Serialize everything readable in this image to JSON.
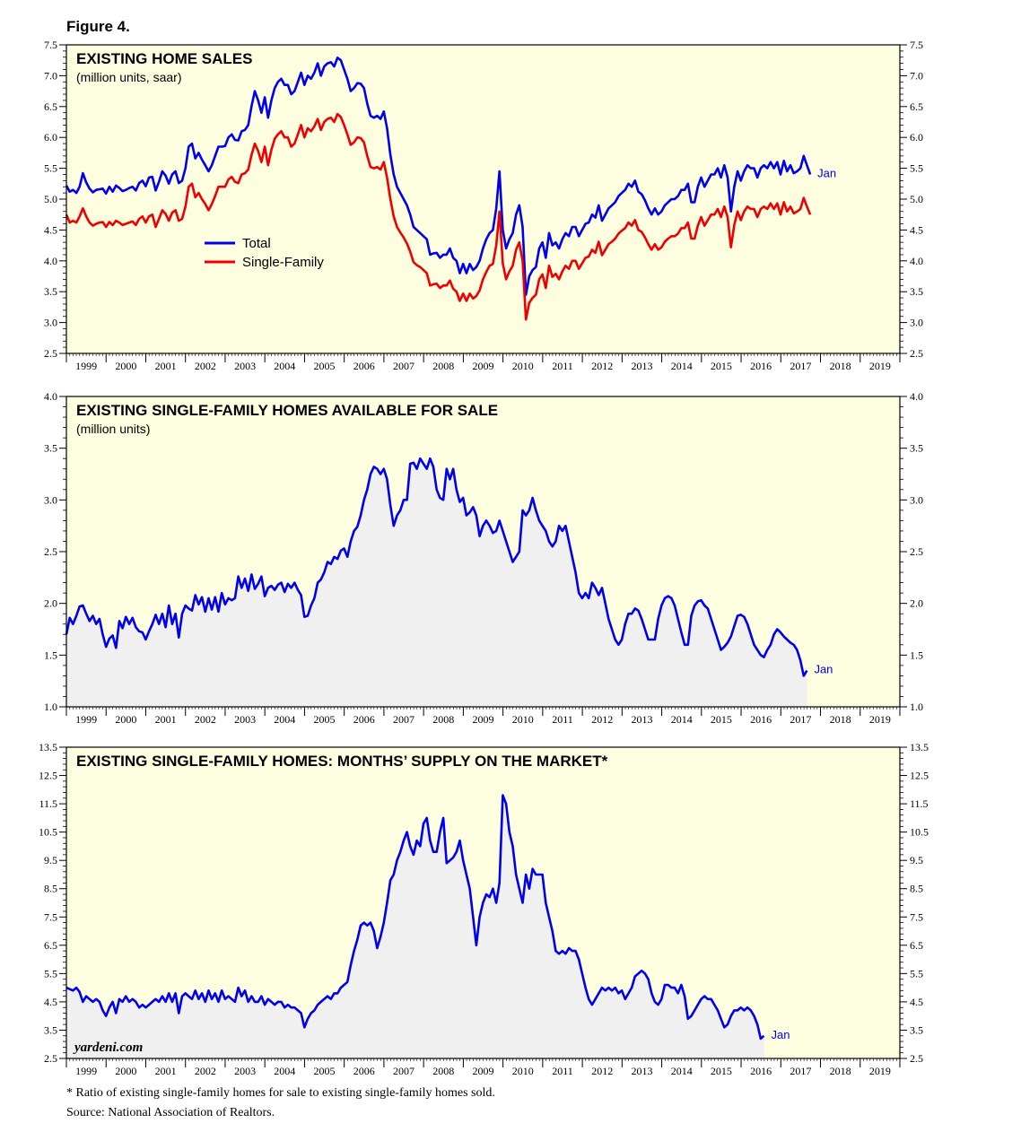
{
  "figure_label": "Figure 4.",
  "footnote": "* Ratio of existing single-family homes for sale to existing single-family homes sold.",
  "source": "Source: National Association of Realtors.",
  "watermark": "yardeni.com",
  "colors": {
    "panel_bg": "#fdfde0",
    "area_fill": "#f0f0f0",
    "total": "#0000ee",
    "single_family": "#ee0000"
  },
  "chart_data": [
    {
      "type": "line",
      "title": "EXISTING HOME SALES",
      "subtitle": "(million units, saar)",
      "x_start": 1999.0,
      "x_step": 0.0833,
      "xlim": [
        1999,
        2020
      ],
      "ylim": [
        2.5,
        7.5
      ],
      "yticks": [
        "2.5",
        "3.0",
        "3.5",
        "4.0",
        "4.5",
        "5.0",
        "5.5",
        "6.0",
        "6.5",
        "7.0",
        "7.5"
      ],
      "xtick_labels": [
        "1999",
        "2000",
        "2001",
        "2002",
        "2003",
        "2004",
        "2005",
        "2006",
        "2007",
        "2008",
        "2009",
        "2010",
        "2011",
        "2012",
        "2013",
        "2014",
        "2015",
        "2016",
        "2017",
        "2018",
        "2019"
      ],
      "end_label": "Jan",
      "legend": {
        "placement": "center-left",
        "entries": [
          "Total",
          "Single-Family"
        ]
      },
      "series": [
        {
          "name": "Total",
          "color": "#0000ee",
          "values": [
            5.22,
            5.12,
            5.15,
            5.1,
            5.2,
            5.42,
            5.27,
            5.17,
            5.11,
            5.15,
            5.16,
            5.17,
            5.09,
            5.2,
            5.12,
            5.22,
            5.18,
            5.13,
            5.15,
            5.18,
            5.2,
            5.14,
            5.26,
            5.3,
            5.21,
            5.35,
            5.36,
            5.14,
            5.28,
            5.45,
            5.38,
            5.25,
            5.4,
            5.45,
            5.26,
            5.3,
            5.5,
            5.85,
            5.9,
            5.66,
            5.75,
            5.64,
            5.55,
            5.45,
            5.55,
            5.7,
            5.85,
            5.85,
            5.86,
            6.0,
            6.05,
            5.96,
            5.95,
            6.1,
            6.12,
            6.2,
            6.51,
            6.75,
            6.6,
            6.4,
            6.65,
            6.32,
            6.6,
            6.8,
            6.9,
            6.95,
            6.85,
            6.85,
            6.7,
            6.75,
            6.9,
            7.05,
            6.85,
            7.0,
            6.95,
            7.05,
            7.2,
            7.0,
            7.15,
            7.2,
            7.22,
            7.15,
            7.29,
            7.25,
            7.1,
            6.95,
            6.75,
            6.8,
            6.88,
            6.87,
            6.8,
            6.55,
            6.35,
            6.32,
            6.35,
            6.3,
            6.42,
            6.15,
            5.72,
            5.4,
            5.2,
            5.1,
            5.0,
            4.9,
            4.75,
            4.55,
            4.5,
            4.45,
            4.4,
            4.35,
            4.1,
            4.12,
            4.13,
            4.05,
            4.1,
            4.1,
            4.2,
            4.05,
            4.0,
            3.8,
            3.95,
            3.8,
            3.95,
            3.85,
            3.9,
            4.0,
            4.2,
            4.35,
            4.45,
            4.5,
            4.85,
            5.45,
            4.5,
            4.2,
            4.35,
            4.45,
            4.75,
            4.9,
            4.55,
            3.45,
            3.75,
            3.85,
            3.9,
            4.2,
            4.3,
            4.05,
            4.45,
            4.25,
            4.3,
            4.2,
            4.35,
            4.45,
            4.4,
            4.55,
            4.55,
            4.4,
            4.5,
            4.6,
            4.62,
            4.75,
            4.7,
            4.9,
            4.65,
            4.75,
            4.85,
            4.9,
            4.95,
            5.05,
            5.1,
            5.15,
            5.25,
            5.2,
            5.3,
            5.12,
            5.08,
            4.98,
            4.85,
            4.75,
            4.85,
            4.75,
            4.8,
            4.9,
            4.95,
            5.0,
            5.0,
            5.05,
            5.15,
            5.15,
            5.25,
            4.95,
            4.95,
            5.2,
            5.35,
            5.2,
            5.3,
            5.4,
            5.4,
            5.5,
            5.35,
            5.55,
            5.35,
            4.8,
            5.2,
            5.45,
            5.3,
            5.45,
            5.55,
            5.5,
            5.5,
            5.35,
            5.5,
            5.55,
            5.5,
            5.6,
            5.5,
            5.6,
            5.4,
            5.62,
            5.45,
            5.55,
            5.42,
            5.45,
            5.5,
            5.7,
            5.55,
            5.4
          ]
        },
        {
          "name": "Single-Family",
          "color": "#ee0000",
          "values": [
            4.75,
            4.62,
            4.65,
            4.62,
            4.72,
            4.85,
            4.72,
            4.62,
            4.57,
            4.6,
            4.62,
            4.63,
            4.55,
            4.63,
            4.58,
            4.65,
            4.62,
            4.58,
            4.6,
            4.62,
            4.64,
            4.58,
            4.68,
            4.72,
            4.62,
            4.72,
            4.75,
            4.55,
            4.68,
            4.82,
            4.76,
            4.65,
            4.78,
            4.82,
            4.65,
            4.68,
            4.88,
            5.2,
            5.25,
            5.03,
            5.1,
            5.0,
            4.92,
            4.82,
            4.92,
            5.05,
            5.2,
            5.2,
            5.2,
            5.32,
            5.36,
            5.28,
            5.26,
            5.4,
            5.42,
            5.48,
            5.72,
            5.9,
            5.78,
            5.6,
            5.85,
            5.55,
            5.8,
            5.98,
            6.05,
            6.1,
            6.0,
            6.0,
            5.85,
            5.9,
            6.05,
            6.2,
            6.0,
            6.15,
            6.1,
            6.18,
            6.3,
            6.12,
            6.25,
            6.3,
            6.32,
            6.25,
            6.38,
            6.33,
            6.2,
            6.05,
            5.88,
            5.92,
            6.0,
            5.99,
            5.92,
            5.7,
            5.52,
            5.5,
            5.52,
            5.48,
            5.6,
            5.35,
            5.0,
            4.72,
            4.55,
            4.46,
            4.38,
            4.28,
            4.15,
            3.98,
            3.93,
            3.9,
            3.85,
            3.8,
            3.6,
            3.62,
            3.63,
            3.56,
            3.6,
            3.6,
            3.68,
            3.55,
            3.5,
            3.35,
            3.47,
            3.35,
            3.47,
            3.39,
            3.43,
            3.52,
            3.7,
            3.82,
            3.92,
            3.95,
            4.25,
            4.8,
            3.96,
            3.7,
            3.83,
            3.92,
            4.18,
            4.3,
            4.0,
            3.05,
            3.32,
            3.4,
            3.45,
            3.7,
            3.78,
            3.56,
            3.92,
            3.74,
            3.79,
            3.7,
            3.83,
            3.92,
            3.87,
            4.0,
            4.0,
            3.87,
            3.96,
            4.05,
            4.07,
            4.18,
            4.13,
            4.31,
            4.09,
            4.18,
            4.27,
            4.31,
            4.36,
            4.44,
            4.49,
            4.53,
            4.62,
            4.57,
            4.66,
            4.5,
            4.47,
            4.38,
            4.27,
            4.18,
            4.27,
            4.18,
            4.22,
            4.31,
            4.36,
            4.4,
            4.4,
            4.44,
            4.53,
            4.53,
            4.62,
            4.36,
            4.36,
            4.57,
            4.71,
            4.57,
            4.66,
            4.75,
            4.75,
            4.84,
            4.71,
            4.88,
            4.71,
            4.22,
            4.58,
            4.8,
            4.66,
            4.8,
            4.88,
            4.84,
            4.84,
            4.71,
            4.84,
            4.88,
            4.84,
            4.93,
            4.84,
            4.93,
            4.75,
            4.95,
            4.8,
            4.88,
            4.77,
            4.8,
            4.84,
            5.02,
            4.88,
            4.75
          ]
        }
      ]
    },
    {
      "type": "area",
      "title": "EXISTING SINGLE-FAMILY HOMES AVAILABLE FOR SALE",
      "subtitle": "(million units)",
      "x_start": 1999.0,
      "x_step": 0.0833,
      "xlim": [
        1999,
        2020
      ],
      "ylim": [
        1.0,
        4.0
      ],
      "yticks": [
        "1.0",
        "1.5",
        "2.0",
        "2.5",
        "3.0",
        "3.5",
        "4.0"
      ],
      "xtick_labels": [
        "1999",
        "2000",
        "2001",
        "2002",
        "2003",
        "2004",
        "2005",
        "2006",
        "2007",
        "2008",
        "2009",
        "2010",
        "2011",
        "2012",
        "2013",
        "2014",
        "2015",
        "2016",
        "2017",
        "2018",
        "2019"
      ],
      "end_label": "Jan",
      "series": [
        {
          "name": "",
          "color": "#0000ee",
          "values": [
            1.7,
            1.86,
            1.8,
            1.88,
            1.97,
            1.98,
            1.9,
            1.83,
            1.88,
            1.8,
            1.85,
            1.7,
            1.58,
            1.66,
            1.69,
            1.57,
            1.83,
            1.76,
            1.87,
            1.8,
            1.86,
            1.77,
            1.73,
            1.72,
            1.65,
            1.73,
            1.8,
            1.89,
            1.8,
            1.9,
            1.77,
            1.98,
            1.8,
            1.9,
            1.67,
            1.9,
            1.98,
            1.95,
            1.93,
            2.08,
            1.99,
            2.06,
            1.92,
            2.05,
            1.94,
            2.06,
            1.92,
            2.1,
            1.99,
            2.05,
            2.03,
            2.05,
            2.26,
            2.15,
            2.24,
            2.12,
            2.28,
            2.14,
            2.19,
            2.26,
            2.07,
            2.15,
            2.17,
            2.13,
            2.18,
            2.2,
            2.11,
            2.19,
            2.15,
            2.2,
            2.13,
            2.08,
            1.87,
            1.88,
            1.98,
            2.05,
            2.2,
            2.23,
            2.3,
            2.4,
            2.38,
            2.45,
            2.43,
            2.51,
            2.53,
            2.45,
            2.6,
            2.7,
            2.74,
            2.85,
            3.0,
            3.1,
            3.25,
            3.32,
            3.3,
            3.25,
            3.3,
            3.2,
            2.95,
            2.75,
            2.85,
            2.9,
            3.0,
            3.0,
            3.35,
            3.36,
            3.3,
            3.4,
            3.35,
            3.3,
            3.4,
            3.32,
            3.1,
            3.02,
            3.0,
            3.3,
            3.2,
            3.3,
            3.1,
            2.98,
            3.02,
            2.85,
            2.88,
            2.93,
            2.85,
            2.65,
            2.75,
            2.8,
            2.75,
            2.68,
            2.7,
            2.8,
            2.7,
            2.6,
            2.5,
            2.4,
            2.45,
            2.5,
            2.9,
            2.85,
            2.9,
            3.02,
            2.9,
            2.8,
            2.75,
            2.7,
            2.6,
            2.55,
            2.6,
            2.75,
            2.7,
            2.75,
            2.6,
            2.45,
            2.3,
            2.1,
            2.05,
            2.1,
            2.05,
            2.2,
            2.15,
            2.08,
            2.15,
            2.0,
            1.85,
            1.75,
            1.65,
            1.6,
            1.65,
            1.8,
            1.9,
            1.9,
            1.95,
            1.93,
            1.85,
            1.75,
            1.65,
            1.65,
            1.65,
            1.85,
            1.98,
            2.05,
            2.07,
            2.05,
            1.98,
            1.85,
            1.72,
            1.6,
            1.6,
            1.88,
            1.98,
            2.02,
            2.03,
            1.98,
            1.95,
            1.85,
            1.75,
            1.65,
            1.55,
            1.58,
            1.62,
            1.68,
            1.78,
            1.88,
            1.89,
            1.87,
            1.8,
            1.7,
            1.6,
            1.55,
            1.5,
            1.48,
            1.55,
            1.6,
            1.7,
            1.75,
            1.72,
            1.68,
            1.65,
            1.62,
            1.6,
            1.55,
            1.45,
            1.3,
            1.35
          ]
        }
      ]
    },
    {
      "type": "area",
      "title": "EXISTING SINGLE-FAMILY HOMES: MONTHS’ SUPPLY ON THE MARKET*",
      "subtitle": "",
      "x_start": 1999.0,
      "x_step": 0.0833,
      "xlim": [
        1999,
        2020
      ],
      "ylim": [
        2.5,
        13.5
      ],
      "yticks": [
        "2.5",
        "3.5",
        "4.5",
        "5.5",
        "6.5",
        "7.5",
        "8.5",
        "9.5",
        "10.5",
        "11.5",
        "12.5",
        "13.5"
      ],
      "xtick_labels": [
        "1999",
        "2000",
        "2001",
        "2002",
        "2003",
        "2004",
        "2005",
        "2006",
        "2007",
        "2008",
        "2009",
        "2010",
        "2011",
        "2012",
        "2013",
        "2014",
        "2015",
        "2016",
        "2017",
        "2018",
        "2019"
      ],
      "end_label": "Jan",
      "series": [
        {
          "name": "",
          "color": "#0000ee",
          "values": [
            5.0,
            4.95,
            4.9,
            5.0,
            4.85,
            4.5,
            4.7,
            4.6,
            4.5,
            4.6,
            4.5,
            4.2,
            4.0,
            4.3,
            4.5,
            4.1,
            4.6,
            4.5,
            4.7,
            4.5,
            4.6,
            4.5,
            4.3,
            4.4,
            4.3,
            4.4,
            4.5,
            4.6,
            4.5,
            4.7,
            4.5,
            4.8,
            4.5,
            4.8,
            4.1,
            4.7,
            4.8,
            4.7,
            4.6,
            4.9,
            4.6,
            4.8,
            4.5,
            4.9,
            4.6,
            4.8,
            4.5,
            4.9,
            4.6,
            4.7,
            4.6,
            4.5,
            5.0,
            4.7,
            4.9,
            4.5,
            4.7,
            4.5,
            4.5,
            4.7,
            4.4,
            4.6,
            4.5,
            4.4,
            4.5,
            4.5,
            4.3,
            4.4,
            4.3,
            4.3,
            4.2,
            4.1,
            3.6,
            3.9,
            4.1,
            4.2,
            4.4,
            4.5,
            4.6,
            4.7,
            4.6,
            4.8,
            4.8,
            5.0,
            5.1,
            5.2,
            5.8,
            6.3,
            6.7,
            7.2,
            7.3,
            7.2,
            7.3,
            7.0,
            6.4,
            6.8,
            7.3,
            8.0,
            8.8,
            9.0,
            9.5,
            9.8,
            10.2,
            10.5,
            10.0,
            9.7,
            10.2,
            10.0,
            10.8,
            11.0,
            10.2,
            9.8,
            9.8,
            10.5,
            11.0,
            9.4,
            9.5,
            9.6,
            9.8,
            10.2,
            9.5,
            9.0,
            8.5,
            7.5,
            6.5,
            7.5,
            8.0,
            8.3,
            8.2,
            8.5,
            8.0,
            8.7,
            11.8,
            11.5,
            10.5,
            10.0,
            9.0,
            8.5,
            8.0,
            9.0,
            8.5,
            9.2,
            9.0,
            9.0,
            9.0,
            8.0,
            7.5,
            7.0,
            6.3,
            6.2,
            6.3,
            6.2,
            6.4,
            6.3,
            6.3,
            6.0,
            5.5,
            5.0,
            4.6,
            4.4,
            4.6,
            4.8,
            5.0,
            4.9,
            5.0,
            4.9,
            5.0,
            4.8,
            4.9,
            4.6,
            4.8,
            5.0,
            5.4,
            5.5,
            5.6,
            5.5,
            5.3,
            4.8,
            4.5,
            4.4,
            4.6,
            5.1,
            5.1,
            5.0,
            5.0,
            4.8,
            5.1,
            4.7,
            3.9,
            4.0,
            4.2,
            4.4,
            4.6,
            4.7,
            4.6,
            4.6,
            4.4,
            4.2,
            3.9,
            3.6,
            3.7,
            4.0,
            4.2,
            4.2,
            4.3,
            4.2,
            4.3,
            4.2,
            4.0,
            3.7,
            3.2,
            3.3
          ]
        }
      ]
    }
  ]
}
